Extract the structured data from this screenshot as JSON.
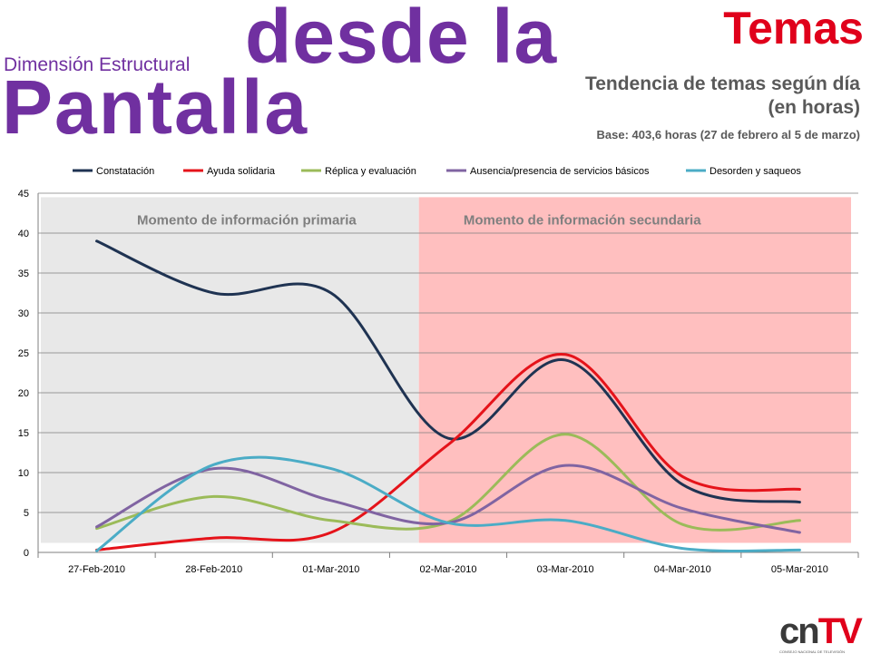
{
  "header": {
    "subtitle": "Dimensión Estructural",
    "title_line1": "desde la",
    "title_line2": "Pantalla",
    "section": "Temas",
    "chart_heading": "Tendencia de temas según día (en horas)",
    "base_note": "Base: 403,6 horas (27 de febrero al 5 de marzo)"
  },
  "logo": {
    "text_cn": "cn",
    "text_tv": "TV",
    "caption": "CONSEJO NACIONAL DE TELEVISIÓN"
  },
  "chart_data": {
    "type": "line",
    "categories": [
      "27-Feb-2010",
      "28-Feb-2010",
      "01-Mar-2010",
      "02-Mar-2010",
      "03-Mar-2010",
      "04-Mar-2010",
      "05-Mar-2010"
    ],
    "series": [
      {
        "name": "Constatación",
        "color": "#1f3352",
        "values": [
          39,
          32.5,
          32.5,
          14.3,
          24.1,
          8.5,
          6.3
        ]
      },
      {
        "name": "Ayuda solidaria",
        "color": "#e5131a",
        "values": [
          0.3,
          1.8,
          2.5,
          13.5,
          24.8,
          9.5,
          7.9
        ]
      },
      {
        "name": "Réplica y evaluación",
        "color": "#9bbb59",
        "values": [
          3.0,
          7.0,
          4.0,
          3.8,
          14.8,
          3.5,
          4.0
        ]
      },
      {
        "name": "Ausencia/presencia de servicios básicos",
        "color": "#8064a2",
        "values": [
          3.2,
          10.5,
          6.5,
          3.7,
          10.9,
          5.5,
          2.5
        ]
      },
      {
        "name": "Desorden y saqueos",
        "color": "#4bacc6",
        "values": [
          0.2,
          11.0,
          10.5,
          3.7,
          4.0,
          0.5,
          0.3
        ]
      }
    ],
    "regions": [
      {
        "label": "Momento de información primaria",
        "color": "#e8e8e8"
      },
      {
        "label": "Momento de información secundaria",
        "color": "#ffbfbf"
      }
    ],
    "yticks": [
      0,
      5,
      10,
      15,
      20,
      25,
      30,
      35,
      40,
      45
    ],
    "ylim": [
      0,
      45
    ],
    "grid": true,
    "legend_position": "top"
  }
}
